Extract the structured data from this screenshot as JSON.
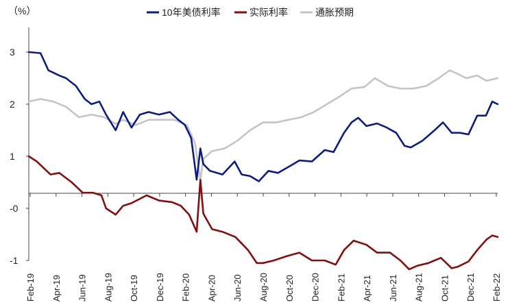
{
  "chart_data": {
    "type": "line",
    "unit_label": "（%）",
    "ylim": [
      -1,
      3.5
    ],
    "y_ticks": [
      {
        "value": 3,
        "label": "3"
      },
      {
        "value": 2,
        "label": "2"
      },
      {
        "value": 1,
        "label": "1"
      },
      {
        "value": 0,
        "label": "-0"
      },
      {
        "value": -1,
        "label": "-1"
      }
    ],
    "x_ticks": [
      "Feb-19",
      "Apr-19",
      "Jun-19",
      "Aug-19",
      "Oct-19",
      "Dec-19",
      "Feb-20",
      "Apr-20",
      "Jun-20",
      "Aug-20",
      "Oct-20",
      "Dec-20",
      "Feb-21",
      "Apr-21",
      "Jun-21",
      "Aug-21",
      "Oct-21",
      "Dec-21",
      "Feb-22"
    ],
    "x_start": "2019-02-01",
    "x_end": "2022-02-28",
    "grid": false,
    "legend_position": "top",
    "series": [
      {
        "name": "10年美债利率",
        "color": "#0a1a8c",
        "points": [
          [
            "2019-02-01",
            3.0
          ],
          [
            "2019-03-01",
            2.98
          ],
          [
            "2019-03-20",
            2.65
          ],
          [
            "2019-04-15",
            2.55
          ],
          [
            "2019-05-01",
            2.5
          ],
          [
            "2019-05-25",
            2.35
          ],
          [
            "2019-06-15",
            2.1
          ],
          [
            "2019-07-01",
            2.0
          ],
          [
            "2019-07-20",
            2.05
          ],
          [
            "2019-08-05",
            1.8
          ],
          [
            "2019-08-28",
            1.5
          ],
          [
            "2019-09-15",
            1.85
          ],
          [
            "2019-10-05",
            1.55
          ],
          [
            "2019-10-25",
            1.8
          ],
          [
            "2019-11-15",
            1.85
          ],
          [
            "2019-12-10",
            1.8
          ],
          [
            "2020-01-05",
            1.85
          ],
          [
            "2020-01-25",
            1.7
          ],
          [
            "2020-02-10",
            1.6
          ],
          [
            "2020-02-25",
            1.35
          ],
          [
            "2020-03-09",
            0.55
          ],
          [
            "2020-03-18",
            1.15
          ],
          [
            "2020-03-25",
            0.85
          ],
          [
            "2020-04-10",
            0.72
          ],
          [
            "2020-05-10",
            0.65
          ],
          [
            "2020-06-08",
            0.9
          ],
          [
            "2020-06-25",
            0.65
          ],
          [
            "2020-07-15",
            0.62
          ],
          [
            "2020-08-05",
            0.52
          ],
          [
            "2020-08-28",
            0.72
          ],
          [
            "2020-09-20",
            0.68
          ],
          [
            "2020-10-20",
            0.82
          ],
          [
            "2020-11-10",
            0.92
          ],
          [
            "2020-12-10",
            0.9
          ],
          [
            "2021-01-10",
            1.12
          ],
          [
            "2021-01-31",
            1.08
          ],
          [
            "2021-02-25",
            1.45
          ],
          [
            "2021-03-15",
            1.65
          ],
          [
            "2021-03-31",
            1.74
          ],
          [
            "2021-04-20",
            1.58
          ],
          [
            "2021-05-15",
            1.63
          ],
          [
            "2021-06-05",
            1.56
          ],
          [
            "2021-06-30",
            1.45
          ],
          [
            "2021-07-20",
            1.2
          ],
          [
            "2021-08-04",
            1.17
          ],
          [
            "2021-09-01",
            1.3
          ],
          [
            "2021-09-30",
            1.5
          ],
          [
            "2021-10-20",
            1.65
          ],
          [
            "2021-11-10",
            1.45
          ],
          [
            "2021-11-30",
            1.45
          ],
          [
            "2021-12-20",
            1.42
          ],
          [
            "2022-01-10",
            1.78
          ],
          [
            "2022-01-31",
            1.78
          ],
          [
            "2022-02-15",
            2.05
          ],
          [
            "2022-02-28",
            2.0
          ]
        ]
      },
      {
        "name": "实际利率",
        "color": "#8b0a0a",
        "points": [
          [
            "2019-02-01",
            1.0
          ],
          [
            "2019-02-20",
            0.9
          ],
          [
            "2019-03-25",
            0.65
          ],
          [
            "2019-04-15",
            0.68
          ],
          [
            "2019-05-15",
            0.5
          ],
          [
            "2019-06-10",
            0.3
          ],
          [
            "2019-07-05",
            0.3
          ],
          [
            "2019-07-25",
            0.25
          ],
          [
            "2019-08-05",
            0.0
          ],
          [
            "2019-08-28",
            -0.12
          ],
          [
            "2019-09-15",
            0.05
          ],
          [
            "2019-10-05",
            0.1
          ],
          [
            "2019-11-10",
            0.25
          ],
          [
            "2019-12-10",
            0.15
          ],
          [
            "2020-01-10",
            0.12
          ],
          [
            "2020-01-31",
            0.05
          ],
          [
            "2020-02-20",
            -0.12
          ],
          [
            "2020-03-09",
            -0.45
          ],
          [
            "2020-03-18",
            0.55
          ],
          [
            "2020-03-25",
            -0.1
          ],
          [
            "2020-04-15",
            -0.4
          ],
          [
            "2020-05-10",
            -0.45
          ],
          [
            "2020-06-10",
            -0.55
          ],
          [
            "2020-07-10",
            -0.8
          ],
          [
            "2020-07-31",
            -1.05
          ],
          [
            "2020-08-15",
            -1.05
          ],
          [
            "2020-09-10",
            -1.0
          ],
          [
            "2020-10-10",
            -0.92
          ],
          [
            "2020-11-10",
            -0.85
          ],
          [
            "2020-12-10",
            -1.0
          ],
          [
            "2021-01-10",
            -1.0
          ],
          [
            "2021-02-05",
            -1.08
          ],
          [
            "2021-02-25",
            -0.8
          ],
          [
            "2021-03-20",
            -0.62
          ],
          [
            "2021-04-20",
            -0.7
          ],
          [
            "2021-05-15",
            -0.85
          ],
          [
            "2021-06-15",
            -0.85
          ],
          [
            "2021-07-10",
            -1.0
          ],
          [
            "2021-07-31",
            -1.17
          ],
          [
            "2021-08-20",
            -1.1
          ],
          [
            "2021-09-15",
            -1.05
          ],
          [
            "2021-10-15",
            -0.95
          ],
          [
            "2021-11-10",
            -1.15
          ],
          [
            "2021-11-25",
            -1.12
          ],
          [
            "2021-12-20",
            -1.02
          ],
          [
            "2022-01-10",
            -0.8
          ],
          [
            "2022-02-01",
            -0.6
          ],
          [
            "2022-02-15",
            -0.52
          ],
          [
            "2022-02-28",
            -0.55
          ]
        ]
      },
      {
        "name": "通胀预期",
        "color": "#c4c4c4",
        "points": [
          [
            "2019-02-01",
            2.05
          ],
          [
            "2019-03-01",
            2.1
          ],
          [
            "2019-04-01",
            2.05
          ],
          [
            "2019-05-01",
            1.95
          ],
          [
            "2019-06-01",
            1.75
          ],
          [
            "2019-07-01",
            1.8
          ],
          [
            "2019-08-01",
            1.75
          ],
          [
            "2019-08-28",
            1.62
          ],
          [
            "2019-09-15",
            1.7
          ],
          [
            "2019-10-15",
            1.6
          ],
          [
            "2019-11-15",
            1.7
          ],
          [
            "2019-12-15",
            1.7
          ],
          [
            "2020-01-15",
            1.7
          ],
          [
            "2020-02-15",
            1.6
          ],
          [
            "2020-03-05",
            1.25
          ],
          [
            "2020-03-18",
            0.55
          ],
          [
            "2020-03-25",
            0.95
          ],
          [
            "2020-04-15",
            1.1
          ],
          [
            "2020-05-15",
            1.15
          ],
          [
            "2020-06-15",
            1.3
          ],
          [
            "2020-07-15",
            1.5
          ],
          [
            "2020-08-15",
            1.65
          ],
          [
            "2020-09-15",
            1.65
          ],
          [
            "2020-10-15",
            1.7
          ],
          [
            "2020-11-15",
            1.75
          ],
          [
            "2020-12-15",
            1.85
          ],
          [
            "2021-01-15",
            2.0
          ],
          [
            "2021-02-15",
            2.15
          ],
          [
            "2021-03-15",
            2.3
          ],
          [
            "2021-04-15",
            2.33
          ],
          [
            "2021-05-10",
            2.5
          ],
          [
            "2021-06-10",
            2.35
          ],
          [
            "2021-07-10",
            2.3
          ],
          [
            "2021-08-10",
            2.3
          ],
          [
            "2021-09-10",
            2.35
          ],
          [
            "2021-10-10",
            2.5
          ],
          [
            "2021-11-05",
            2.65
          ],
          [
            "2021-11-25",
            2.58
          ],
          [
            "2021-12-15",
            2.5
          ],
          [
            "2022-01-10",
            2.55
          ],
          [
            "2022-02-01",
            2.45
          ],
          [
            "2022-02-28",
            2.5
          ]
        ]
      }
    ]
  }
}
